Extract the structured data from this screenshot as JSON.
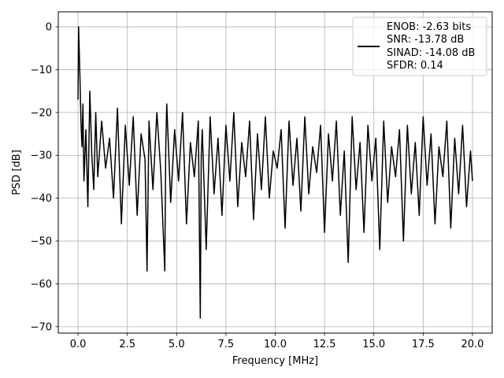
{
  "chart_data": {
    "type": "line",
    "title": "",
    "xlabel": "Frequency [MHz]",
    "ylabel": "PSD [dB]",
    "xlim": [
      -1.0,
      21.0
    ],
    "ylim": [
      -71.5,
      3.5
    ],
    "xticks": [
      0.0,
      2.5,
      5.0,
      7.5,
      10.0,
      12.5,
      15.0,
      17.5,
      20.0
    ],
    "xtick_labels": [
      "0.0",
      "2.5",
      "5.0",
      "7.5",
      "10.0",
      "12.5",
      "15.0",
      "17.5",
      "20.0"
    ],
    "yticks": [
      0,
      -10,
      -20,
      -30,
      -40,
      -50,
      -60,
      -70
    ],
    "ytick_labels": [
      "0",
      "−10",
      "−20",
      "−30",
      "−40",
      "−50",
      "−60",
      "−70"
    ],
    "grid": true,
    "legend_position": "top-right",
    "legend_lines": [
      "ENOB: -2.63 bits",
      "SNR: -13.78 dB",
      "SINAD: -14.08 dB",
      "SFDR: 0.14"
    ],
    "series": [
      {
        "color": "#000000",
        "x": [
          0.0,
          0.03,
          0.06,
          0.1,
          0.15,
          0.2,
          0.25,
          0.3,
          0.4,
          0.5,
          0.6,
          0.7,
          0.8,
          0.9,
          1.0,
          1.2,
          1.4,
          1.6,
          1.8,
          2.0,
          2.2,
          2.4,
          2.6,
          2.8,
          3.0,
          3.2,
          3.4,
          3.5,
          3.6,
          3.8,
          4.0,
          4.2,
          4.4,
          4.45,
          4.5,
          4.7,
          4.9,
          5.1,
          5.3,
          5.5,
          5.7,
          5.9,
          6.1,
          6.2,
          6.25,
          6.3,
          6.5,
          6.7,
          6.9,
          7.1,
          7.3,
          7.5,
          7.7,
          7.9,
          8.1,
          8.3,
          8.5,
          8.7,
          8.9,
          9.1,
          9.3,
          9.5,
          9.7,
          9.9,
          10.1,
          10.3,
          10.5,
          10.7,
          10.9,
          11.1,
          11.3,
          11.5,
          11.7,
          11.9,
          12.1,
          12.3,
          12.5,
          12.7,
          12.9,
          13.1,
          13.3,
          13.5,
          13.7,
          13.9,
          14.1,
          14.3,
          14.5,
          14.7,
          14.9,
          15.1,
          15.3,
          15.5,
          15.7,
          15.9,
          16.1,
          16.3,
          16.5,
          16.7,
          16.9,
          17.1,
          17.3,
          17.5,
          17.7,
          17.9,
          18.1,
          18.3,
          18.5,
          18.7,
          18.9,
          19.1,
          19.3,
          19.5,
          19.7,
          19.9,
          20.0
        ],
        "y": [
          -17,
          0,
          -5,
          -12,
          -22,
          -28,
          -18,
          -36,
          -24,
          -42,
          -15,
          -30,
          -38,
          -20,
          -35,
          -22,
          -33,
          -26,
          -40,
          -19,
          -46,
          -23,
          -37,
          -21,
          -44,
          -25,
          -31,
          -57,
          -22,
          -38,
          -20,
          -34,
          -57,
          -28,
          -18,
          -41,
          -24,
          -36,
          -20,
          -46,
          -27,
          -35,
          -22,
          -68,
          -30,
          -24,
          -52,
          -21,
          -39,
          -26,
          -44,
          -23,
          -36,
          -20,
          -42,
          -27,
          -35,
          -22,
          -45,
          -25,
          -38,
          -21,
          -40,
          -29,
          -33,
          -24,
          -47,
          -22,
          -37,
          -26,
          -43,
          -21,
          -39,
          -28,
          -34,
          -23,
          -48,
          -25,
          -36,
          -22,
          -44,
          -29,
          -55,
          -21,
          -38,
          -27,
          -48,
          -23,
          -36,
          -26,
          -52,
          -22,
          -41,
          -28,
          -35,
          -24,
          -50,
          -23,
          -39,
          -27,
          -44,
          -21,
          -37,
          -25,
          -46,
          -28,
          -35,
          -22,
          -47,
          -26,
          -39,
          -23,
          -42,
          -29,
          -36
        ]
      }
    ]
  }
}
